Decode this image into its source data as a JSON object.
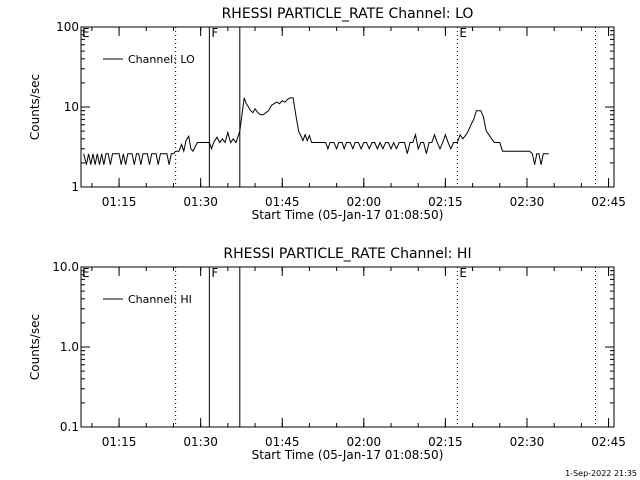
{
  "footer": {
    "stamp": "1-Sep-2022 21:35"
  },
  "chart_data": [
    {
      "type": "line",
      "title": "RHESSI PARTICLE_RATE Channel: LO",
      "xlabel": "Start Time (05-Jan-17 01:08:50)",
      "ylabel": "Counts/sec",
      "yscale": "log",
      "ylim": [
        1,
        100
      ],
      "yticks": [
        {
          "v": 1,
          "label": "1"
        },
        {
          "v": 10,
          "label": "10"
        },
        {
          "v": 100,
          "label": "100"
        }
      ],
      "xlim_min": [
        68,
        166
      ],
      "xticks": [
        {
          "v": 75,
          "label": "01:15"
        },
        {
          "v": 90,
          "label": "01:30"
        },
        {
          "v": 105,
          "label": "01:45"
        },
        {
          "v": 120,
          "label": "02:00"
        },
        {
          "v": 135,
          "label": "02:15"
        },
        {
          "v": 150,
          "label": "02:30"
        },
        {
          "v": 165,
          "label": "02:45"
        }
      ],
      "legend": {
        "position": "top-left",
        "label": "Channel: LO"
      },
      "flag_lines": [
        {
          "x": 85.4,
          "label": "",
          "style": "dotted"
        },
        {
          "x": 91.6,
          "label": "F",
          "style": "solid"
        },
        {
          "x": 97.2,
          "label": "",
          "style": "solid"
        },
        {
          "x": 137.2,
          "label": "E",
          "style": "dotted"
        },
        {
          "x": 162.6,
          "label": "",
          "style": "dotted"
        },
        {
          "x": 68,
          "label": "E",
          "style": "none"
        }
      ],
      "series": [
        {
          "name": "Channel: LO",
          "points": [
            [
              68.5,
              2.6
            ],
            [
              69,
              1.9
            ],
            [
              69.4,
              2.6
            ],
            [
              69.8,
              1.9
            ],
            [
              70.2,
              2.6
            ],
            [
              70.6,
              1.9
            ],
            [
              71,
              2.6
            ],
            [
              71.4,
              1.9
            ],
            [
              71.8,
              2.6
            ],
            [
              72.2,
              1.9
            ],
            [
              72.6,
              2.6
            ],
            [
              73,
              2.6
            ],
            [
              73.4,
              1.9
            ],
            [
              73.8,
              2.6
            ],
            [
              74.2,
              2.6
            ],
            [
              74.6,
              2.6
            ],
            [
              75,
              2.6
            ],
            [
              75.4,
              1.9
            ],
            [
              75.8,
              2.6
            ],
            [
              76.2,
              1.9
            ],
            [
              76.6,
              2.6
            ],
            [
              77,
              2.6
            ],
            [
              77.4,
              2.6
            ],
            [
              77.8,
              1.9
            ],
            [
              78.2,
              2.6
            ],
            [
              78.6,
              2.6
            ],
            [
              79,
              1.9
            ],
            [
              79.4,
              2.6
            ],
            [
              79.8,
              2.6
            ],
            [
              80.2,
              2.6
            ],
            [
              80.6,
              1.9
            ],
            [
              81,
              2.6
            ],
            [
              81.4,
              2.6
            ],
            [
              81.8,
              2.6
            ],
            [
              82.2,
              1.9
            ],
            [
              82.6,
              2.6
            ],
            [
              83,
              2.6
            ],
            [
              83.4,
              2.6
            ],
            [
              83.8,
              2.6
            ],
            [
              84.2,
              1.9
            ],
            [
              84.6,
              2.6
            ],
            [
              85,
              2.6
            ],
            [
              85.4,
              2.8
            ],
            [
              86,
              2.8
            ],
            [
              86.5,
              3.4
            ],
            [
              86.9,
              2.8
            ],
            [
              87.3,
              3.8
            ],
            [
              87.8,
              4.3
            ],
            [
              88.2,
              3.0
            ],
            [
              88.6,
              2.8
            ],
            [
              89,
              3.2
            ],
            [
              89.4,
              3.6
            ],
            [
              90,
              3.6
            ],
            [
              91,
              3.6
            ],
            [
              91.6,
              3.6
            ],
            [
              92,
              3.0
            ],
            [
              92.4,
              3.6
            ],
            [
              93,
              4.2
            ],
            [
              93.5,
              3.6
            ],
            [
              94,
              4.0
            ],
            [
              94.5,
              3.6
            ],
            [
              95,
              4.8
            ],
            [
              95.5,
              3.6
            ],
            [
              96,
              4.0
            ],
            [
              96.5,
              3.6
            ],
            [
              97.2,
              5.0
            ],
            [
              97.7,
              9.0
            ],
            [
              98,
              13.0
            ],
            [
              98.4,
              11.0
            ],
            [
              98.8,
              10.0
            ],
            [
              99.2,
              9.0
            ],
            [
              99.6,
              8.5
            ],
            [
              100,
              9.5
            ],
            [
              100.5,
              8.5
            ],
            [
              101,
              8.0
            ],
            [
              101.5,
              8.0
            ],
            [
              102,
              8.5
            ],
            [
              102.5,
              9.0
            ],
            [
              103,
              10.5
            ],
            [
              103.5,
              11.0
            ],
            [
              104,
              11.5
            ],
            [
              104.5,
              11.0
            ],
            [
              105,
              12.0
            ],
            [
              105.5,
              11.5
            ],
            [
              106,
              12.5
            ],
            [
              106.5,
              13.0
            ],
            [
              107,
              13.0
            ],
            [
              107.5,
              8.0
            ],
            [
              108,
              5.0
            ],
            [
              108.4,
              4.4
            ],
            [
              108.8,
              3.8
            ],
            [
              109.2,
              4.5
            ],
            [
              109.6,
              3.8
            ],
            [
              110,
              4.4
            ],
            [
              110.4,
              3.6
            ],
            [
              111,
              3.6
            ],
            [
              112,
              3.6
            ],
            [
              113,
              3.6
            ],
            [
              113.4,
              3.0
            ],
            [
              113.8,
              3.6
            ],
            [
              114.5,
              3.6
            ],
            [
              115,
              3.0
            ],
            [
              115.4,
              3.6
            ],
            [
              116,
              3.6
            ],
            [
              116.4,
              3.0
            ],
            [
              116.8,
              3.6
            ],
            [
              117.5,
              3.6
            ],
            [
              118,
              3.0
            ],
            [
              118.4,
              3.6
            ],
            [
              119,
              3.6
            ],
            [
              119.5,
              3.0
            ],
            [
              120,
              3.6
            ],
            [
              120.5,
              3.6
            ],
            [
              121,
              3.0
            ],
            [
              121.5,
              3.6
            ],
            [
              122,
              3.6
            ],
            [
              122.5,
              3.0
            ],
            [
              123,
              3.6
            ],
            [
              123.5,
              3.0
            ],
            [
              124,
              3.6
            ],
            [
              124.5,
              3.6
            ],
            [
              125,
              3.0
            ],
            [
              125.5,
              3.6
            ],
            [
              126,
              3.0
            ],
            [
              126.5,
              3.6
            ],
            [
              127,
              3.6
            ],
            [
              127.5,
              3.6
            ],
            [
              128,
              2.6
            ],
            [
              128.5,
              3.6
            ],
            [
              129,
              3.6
            ],
            [
              129.5,
              4.5
            ],
            [
              130,
              3.0
            ],
            [
              130.5,
              3.6
            ],
            [
              131,
              3.6
            ],
            [
              131.5,
              2.6
            ],
            [
              132,
              3.6
            ],
            [
              132.5,
              3.6
            ],
            [
              133,
              4.5
            ],
            [
              133.5,
              3.6
            ],
            [
              134,
              3.0
            ],
            [
              134.5,
              3.6
            ],
            [
              135,
              4.5
            ],
            [
              135.5,
              3.6
            ],
            [
              136,
              3.0
            ],
            [
              136.5,
              3.6
            ],
            [
              137.2,
              3.6
            ],
            [
              137.7,
              4.5
            ],
            [
              138.2,
              4.0
            ],
            [
              138.7,
              4.4
            ],
            [
              139.2,
              5.0
            ],
            [
              139.7,
              6.0
            ],
            [
              140.2,
              7.0
            ],
            [
              140.7,
              9.0
            ],
            [
              141.5,
              9.0
            ],
            [
              142,
              7.5
            ],
            [
              142.5,
              5.0
            ],
            [
              143,
              4.5
            ],
            [
              143.5,
              4.0
            ],
            [
              144,
              3.6
            ],
            [
              144.5,
              3.6
            ],
            [
              145,
              3.6
            ],
            [
              145.5,
              2.8
            ],
            [
              146,
              2.8
            ],
            [
              147,
              2.8
            ],
            [
              148,
              2.8
            ],
            [
              149,
              2.8
            ],
            [
              150,
              2.8
            ],
            [
              150.5,
              2.8
            ],
            [
              151,
              2.6
            ],
            [
              151.4,
              1.9
            ],
            [
              151.8,
              2.6
            ],
            [
              152.2,
              2.6
            ],
            [
              152.6,
              1.9
            ],
            [
              153,
              2.6
            ],
            [
              153.4,
              2.6
            ],
            [
              153.8,
              2.6
            ],
            [
              154,
              2.6
            ]
          ]
        }
      ]
    },
    {
      "type": "line",
      "title": "RHESSI PARTICLE_RATE Channel: HI",
      "xlabel": "Start Time (05-Jan-17 01:08:50)",
      "ylabel": "Counts/sec",
      "yscale": "log",
      "ylim": [
        0.1,
        10
      ],
      "yticks": [
        {
          "v": 0.1,
          "label": "0.1"
        },
        {
          "v": 1,
          "label": "1.0"
        },
        {
          "v": 10,
          "label": "10.0"
        }
      ],
      "xlim_min": [
        68,
        166
      ],
      "xticks": [
        {
          "v": 75,
          "label": "01:15"
        },
        {
          "v": 90,
          "label": "01:30"
        },
        {
          "v": 105,
          "label": "01:45"
        },
        {
          "v": 120,
          "label": "02:00"
        },
        {
          "v": 135,
          "label": "02:15"
        },
        {
          "v": 150,
          "label": "02:30"
        },
        {
          "v": 165,
          "label": "02:45"
        }
      ],
      "legend": {
        "position": "top-left",
        "label": "Channel: HI"
      },
      "flag_lines": [
        {
          "x": 85.4,
          "label": "",
          "style": "dotted"
        },
        {
          "x": 91.6,
          "label": "F",
          "style": "solid"
        },
        {
          "x": 97.2,
          "label": "",
          "style": "solid"
        },
        {
          "x": 137.2,
          "label": "E",
          "style": "dotted"
        },
        {
          "x": 162.6,
          "label": "",
          "style": "dotted"
        },
        {
          "x": 68,
          "label": "E",
          "style": "none"
        }
      ],
      "series": [
        {
          "name": "Channel: HI",
          "points": []
        }
      ]
    }
  ]
}
